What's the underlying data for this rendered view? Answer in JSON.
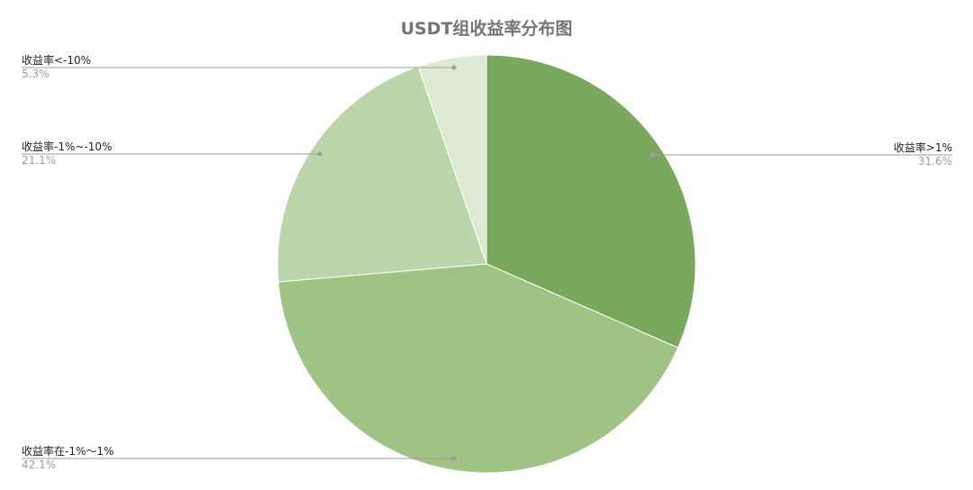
{
  "chart_data": {
    "type": "pie",
    "title": "USDT组收益率分布图",
    "slices": [
      {
        "label": "收益率>1%",
        "value": 31.6,
        "value_label": "31.6%",
        "color": "#7aa85c",
        "label_side": "right"
      },
      {
        "label": "收益率在-1%～1%",
        "value": 42.1,
        "value_label": "42.1%",
        "color": "#9fc384",
        "label_side": "left"
      },
      {
        "label": "收益率-1%~-10%",
        "value": 21.1,
        "value_label": "21.1%",
        "color": "#bcd6ac",
        "label_side": "left"
      },
      {
        "label": "收益率<-10%",
        "value": 5.3,
        "value_label": "5.3%",
        "color": "#dce9d3",
        "label_side": "left"
      }
    ],
    "start_direction": "top",
    "rotation": "clockwise",
    "legend": "none",
    "labels_with_leader_lines": true
  }
}
